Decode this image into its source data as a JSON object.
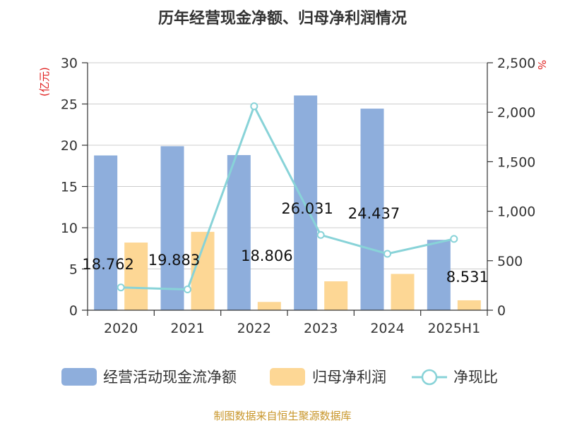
{
  "chart_data": {
    "type": "bar",
    "title": "历年经营现金净额、归母净利润情况",
    "categories": [
      "2020",
      "2021",
      "2022",
      "2023",
      "2024",
      "2025H1"
    ],
    "y_left": {
      "unit": "(亿元)",
      "ylim": [
        0,
        30
      ],
      "ticks": [
        0,
        5,
        10,
        15,
        20,
        25,
        30
      ]
    },
    "y_right": {
      "unit": "%",
      "ylim": [
        0,
        2500
      ],
      "ticks": [
        "0",
        "500",
        "1,000",
        "1,500",
        "2,000",
        "2,500"
      ],
      "tick_values": [
        0,
        500,
        1000,
        1500,
        2000,
        2500
      ]
    },
    "series": [
      {
        "name": "经营活动现金流净额",
        "type": "bar",
        "axis": "left",
        "color": "#8eaedc",
        "values": [
          18.762,
          19.883,
          18.806,
          26.031,
          24.437,
          8.531
        ],
        "labels": [
          "18.762",
          "19.883",
          "18.806",
          "26.031",
          "24.437",
          "8.531"
        ]
      },
      {
        "name": "归母净利润",
        "type": "bar",
        "axis": "left",
        "color": "#fdd795",
        "values": [
          8.2,
          9.5,
          1.0,
          3.5,
          4.4,
          1.2
        ]
      },
      {
        "name": "净现比",
        "type": "line",
        "axis": "right",
        "color": "#88d3d8",
        "values": [
          230,
          210,
          2060,
          760,
          570,
          720
        ]
      }
    ],
    "legend": "bottom",
    "grid": true
  },
  "source_text": "制图数据来自恒生聚源数据库"
}
